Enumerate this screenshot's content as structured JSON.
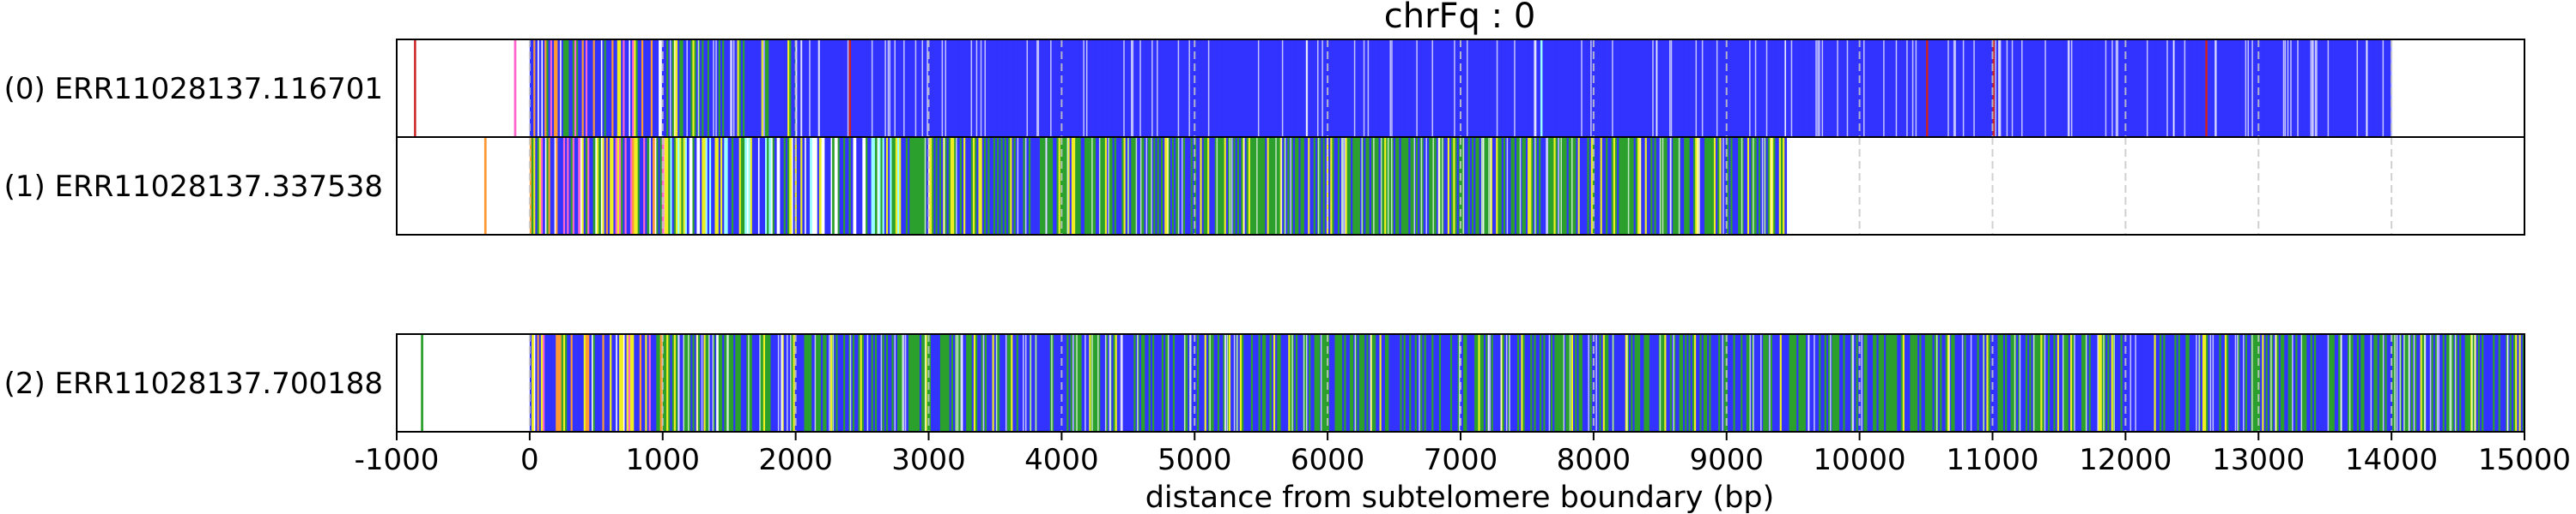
{
  "chart_data": {
    "type": "track",
    "title": "chrFq : 0",
    "xlabel": "distance from subtelomere boundary (bp)",
    "xlim": [
      -1000,
      15000
    ],
    "xticks": [
      -1000,
      0,
      1000,
      2000,
      3000,
      4000,
      5000,
      6000,
      7000,
      8000,
      9000,
      10000,
      11000,
      12000,
      13000,
      14000,
      15000
    ],
    "xtick_labels": [
      "-1000",
      "0",
      "1000",
      "2000",
      "3000",
      "4000",
      "5000",
      "6000",
      "7000",
      "8000",
      "9000",
      "10000",
      "11000",
      "12000",
      "13000",
      "14000",
      "15000"
    ],
    "grid": "vertical dashed at x ticks",
    "colors": {
      "blue": "#3333ff",
      "green": "#2ca02c",
      "yellow": "#eeee22",
      "orange": "#ff9933",
      "pink": "#ff66cc",
      "cyan": "#99ffff",
      "red": "#cc2222",
      "gray": "#999999"
    },
    "reads": [
      {
        "label": "(0) ERR11028137.116701",
        "end": 14000,
        "composition": [
          {
            "from": -1000,
            "to": 0,
            "density": 0.02,
            "mix": {
              "pink": 0.3,
              "green": 0.4,
              "orange": 0.3
            }
          },
          {
            "from": 0,
            "to": 1000,
            "density": 0.9,
            "mix": {
              "blue": 0.55,
              "orange": 0.15,
              "yellow": 0.1,
              "green": 0.1,
              "pink": 0.1
            }
          },
          {
            "from": 1000,
            "to": 2000,
            "density": 1,
            "mix": {
              "blue": 0.75,
              "green": 0.2,
              "yellow": 0.05
            }
          },
          {
            "from": 2000,
            "to": 14000,
            "density": 1,
            "mix": {
              "blue": 1.0
            }
          }
        ],
        "marks": [
          {
            "x": -870,
            "color": "red"
          },
          {
            "x": 2400,
            "color": "red"
          },
          {
            "x": 7600,
            "color": "cyan"
          },
          {
            "x": 10500,
            "color": "red"
          },
          {
            "x": 11000,
            "color": "red"
          },
          {
            "x": 12600,
            "color": "red"
          }
        ]
      },
      {
        "label": "(1) ERR11028137.337538",
        "end": 9450,
        "composition": [
          {
            "from": -1000,
            "to": 0,
            "density": 0.02,
            "mix": {
              "green": 0.4,
              "pink": 0.3,
              "orange": 0.3
            }
          },
          {
            "from": 0,
            "to": 1000,
            "density": 0.9,
            "mix": {
              "blue": 0.45,
              "orange": 0.2,
              "yellow": 0.15,
              "green": 0.1,
              "pink": 0.1
            }
          },
          {
            "from": 1000,
            "to": 2800,
            "density": 0.85,
            "mix": {
              "blue": 0.6,
              "green": 0.15,
              "cyan": 0.15,
              "yellow": 0.1
            }
          },
          {
            "from": 2800,
            "to": 9450,
            "density": 1,
            "mix": {
              "green": 0.5,
              "blue": 0.4,
              "yellow": 0.1
            }
          }
        ],
        "marks": []
      },
      {
        "label": "(2) ERR11028137.700188",
        "end": 15000,
        "composition": [
          {
            "from": -1000,
            "to": 0,
            "density": 0.02,
            "mix": {
              "pink": 0.3,
              "green": 0.4,
              "orange": 0.3
            }
          },
          {
            "from": 0,
            "to": 1000,
            "density": 0.9,
            "mix": {
              "blue": 0.45,
              "yellow": 0.2,
              "orange": 0.15,
              "green": 0.1,
              "pink": 0.1
            }
          },
          {
            "from": 1000,
            "to": 15000,
            "density": 1,
            "mix": {
              "blue": 0.55,
              "green": 0.4,
              "yellow": 0.05
            }
          }
        ],
        "marks": []
      }
    ]
  }
}
